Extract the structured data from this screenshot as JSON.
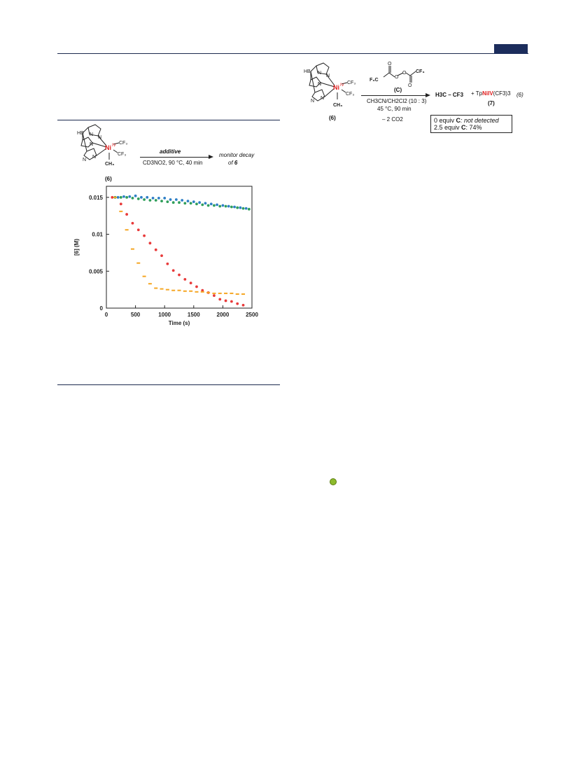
{
  "scheme_left": {
    "compound_label": "(6)",
    "arrow_top": "additive",
    "arrow_bottom": "CD3NO2, 90 °C, 40 min",
    "product_line1": "monitor decay",
    "product_line2_prefix": "of ",
    "product_line2_bold": "6"
  },
  "scheme_right": {
    "compound_label": "(6)",
    "reagent_label": "(C)",
    "conditions_line1": "CH3CN/CH2Cl2 (10 : 3)",
    "conditions_line2": "45 °C, 90 min",
    "conditions_line3": "– 2 CO2",
    "product1": "H3C – CF3",
    "product2_prefix": "+ Tp",
    "product2_metal": "NiIV",
    "product2_suffix": "(CF3)3",
    "product2_label": "(7)",
    "equation_number": "(6)",
    "box_line1_prefix": "0 equiv ",
    "box_line1_bold": "C",
    "box_line1_italic": ": not detected",
    "box_line2_prefix": "2.5 equiv ",
    "box_line2_bold": "C",
    "box_line2_suffix": ": 74%"
  },
  "chart_data": {
    "type": "scatter",
    "xlabel": "Time (s)",
    "ylabel": "[6] (M)",
    "xlim": [
      0,
      2500
    ],
    "ylim": [
      0,
      0.0165
    ],
    "x_ticks": [
      "0",
      "500",
      "1000",
      "1500",
      "2000",
      "2500"
    ],
    "y_ticks": [
      "0",
      "0.005",
      "0.01",
      "0.015"
    ],
    "grid": false,
    "series": [
      {
        "color": "#2e7fc6",
        "marker": "dot",
        "points": [
          [
            200,
            0.015
          ],
          [
            300,
            0.0151
          ],
          [
            400,
            0.0151
          ],
          [
            500,
            0.0152
          ],
          [
            600,
            0.015
          ],
          [
            700,
            0.015
          ],
          [
            800,
            0.0149
          ],
          [
            900,
            0.0149
          ],
          [
            1000,
            0.0149
          ],
          [
            1100,
            0.0147
          ],
          [
            1200,
            0.0147
          ],
          [
            1300,
            0.0146
          ],
          [
            1400,
            0.0145
          ],
          [
            1500,
            0.0144
          ],
          [
            1600,
            0.0143
          ],
          [
            1700,
            0.0142
          ],
          [
            1800,
            0.0141
          ],
          [
            1900,
            0.014
          ],
          [
            2000,
            0.0139
          ],
          [
            2100,
            0.0138
          ],
          [
            2200,
            0.0137
          ],
          [
            2300,
            0.0136
          ],
          [
            2400,
            0.0135
          ]
        ]
      },
      {
        "color": "#2f9e5a",
        "marker": "dot",
        "points": [
          [
            150,
            0.015
          ],
          [
            250,
            0.015
          ],
          [
            350,
            0.015
          ],
          [
            450,
            0.0149
          ],
          [
            550,
            0.0148
          ],
          [
            650,
            0.0147
          ],
          [
            750,
            0.0146
          ],
          [
            850,
            0.0146
          ],
          [
            950,
            0.0145
          ],
          [
            1050,
            0.0144
          ],
          [
            1150,
            0.0143
          ],
          [
            1250,
            0.0143
          ],
          [
            1350,
            0.0142
          ],
          [
            1450,
            0.0142
          ],
          [
            1550,
            0.0141
          ],
          [
            1650,
            0.014
          ],
          [
            1750,
            0.0139
          ],
          [
            1850,
            0.0139
          ],
          [
            1950,
            0.0138
          ],
          [
            2050,
            0.0138
          ],
          [
            2150,
            0.0137
          ],
          [
            2250,
            0.0136
          ],
          [
            2350,
            0.0135
          ],
          [
            2450,
            0.0134
          ]
        ]
      },
      {
        "color": "#e83a3a",
        "marker": "dot",
        "points": [
          [
            100,
            0.015
          ],
          [
            250,
            0.0141
          ],
          [
            350,
            0.0127
          ],
          [
            450,
            0.0115
          ],
          [
            550,
            0.0106
          ],
          [
            650,
            0.0098
          ],
          [
            750,
            0.0088
          ],
          [
            850,
            0.0079
          ],
          [
            950,
            0.0071
          ],
          [
            1050,
            0.006
          ],
          [
            1150,
            0.0051
          ],
          [
            1250,
            0.0045
          ],
          [
            1350,
            0.0039
          ],
          [
            1450,
            0.0034
          ],
          [
            1550,
            0.0029
          ],
          [
            1650,
            0.0024
          ],
          [
            1750,
            0.0021
          ],
          [
            1850,
            0.0017
          ],
          [
            1950,
            0.0012
          ],
          [
            2050,
            0.001
          ],
          [
            2150,
            0.0009
          ],
          [
            2250,
            0.0006
          ],
          [
            2350,
            0.0004
          ]
        ]
      },
      {
        "color": "#f5a623",
        "marker": "dash",
        "points": [
          [
            150,
            0.015
          ],
          [
            250,
            0.0131
          ],
          [
            350,
            0.0106
          ],
          [
            450,
            0.008
          ],
          [
            550,
            0.0061
          ],
          [
            650,
            0.0043
          ],
          [
            750,
            0.0033
          ],
          [
            850,
            0.0027
          ],
          [
            950,
            0.0026
          ],
          [
            1050,
            0.0025
          ],
          [
            1150,
            0.0024
          ],
          [
            1250,
            0.0024
          ],
          [
            1350,
            0.0023
          ],
          [
            1450,
            0.0023
          ],
          [
            1550,
            0.0022
          ],
          [
            1650,
            0.0022
          ],
          [
            1750,
            0.0021
          ],
          [
            1850,
            0.002
          ],
          [
            1950,
            0.002
          ],
          [
            2050,
            0.002
          ],
          [
            2150,
            0.002
          ],
          [
            2250,
            0.0019
          ],
          [
            2350,
            0.0019
          ]
        ]
      }
    ]
  }
}
